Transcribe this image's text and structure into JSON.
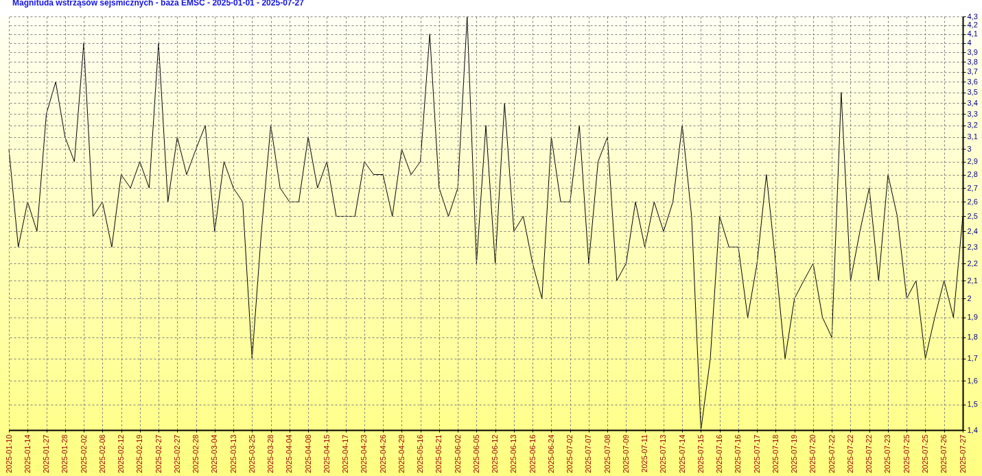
{
  "chart_data": {
    "type": "line",
    "title": "Magnituda wstrząsów sejsmicznych - baza EMSC - 2025-01-01 - 2025-07-27",
    "categories": [
      "2025-01-10",
      null,
      "2025-01-14",
      null,
      "2025-01-27",
      null,
      "2025-01-28",
      null,
      "2025-02-02",
      null,
      "2025-02-08",
      null,
      "2025-02-12",
      null,
      "2025-02-19",
      null,
      "2025-02-27",
      null,
      "2025-02-27",
      null,
      "2025-02-28",
      null,
      "2025-03-04",
      null,
      "2025-03-13",
      null,
      "2025-03-25",
      null,
      "2025-03-28",
      null,
      "2025-04-04",
      null,
      "2025-04-08",
      null,
      "2025-04-15",
      null,
      "2025-04-17",
      null,
      "2025-04-23",
      null,
      "2025-04-26",
      null,
      "2025-04-29",
      null,
      "2025-05-16",
      null,
      "2025-05-21",
      null,
      "2025-06-02",
      null,
      "2025-06-05",
      null,
      "2025-06-12",
      null,
      "2025-06-13",
      null,
      "2025-06-16",
      null,
      "2025-06-24",
      null,
      "2025-07-02",
      null,
      "2025-07-07",
      null,
      "2025-07-08",
      null,
      "2025-07-09",
      null,
      "2025-07-11",
      null,
      "2025-07-13",
      null,
      "2025-07-14",
      null,
      "2025-07-15",
      null,
      "2025-07-16",
      null,
      "2025-07-16",
      null,
      "2025-07-17",
      null,
      "2025-07-18",
      null,
      "2025-07-19",
      null,
      "2025-07-20",
      null,
      "2025-07-22",
      null,
      "2025-07-22",
      null,
      "2025-07-22",
      null,
      "2025-07-23",
      null,
      "2025-07-25",
      null,
      "2025-07-25",
      null,
      "2025-07-26",
      null,
      "2025-07-27"
    ],
    "series": [
      {
        "color": "#000000",
        "values": [
          3.0,
          2.3,
          2.6,
          2.4,
          3.3,
          3.6,
          3.1,
          2.9,
          4.0,
          2.5,
          2.6,
          2.3,
          2.8,
          2.7,
          2.9,
          2.7,
          4.0,
          2.6,
          3.1,
          2.8,
          3.0,
          3.2,
          2.4,
          2.9,
          2.7,
          2.6,
          1.7,
          2.4,
          3.2,
          2.7,
          2.6,
          2.6,
          3.1,
          2.7,
          2.9,
          2.5,
          2.5,
          2.5,
          2.9,
          2.8,
          2.8,
          2.5,
          3.0,
          2.8,
          2.9,
          4.1,
          2.7,
          2.5,
          2.7,
          4.3,
          2.2,
          3.2,
          2.2,
          3.4,
          2.4,
          2.5,
          2.2,
          2.0,
          3.1,
          2.6,
          2.6,
          3.2,
          2.2,
          2.9,
          3.1,
          2.1,
          2.2,
          2.6,
          2.3,
          2.6,
          2.4,
          2.6,
          3.2,
          2.5,
          1.4,
          1.7,
          2.5,
          2.3,
          2.3,
          1.9,
          2.2,
          2.8,
          2.2,
          1.7,
          2.0,
          2.1,
          2.2,
          1.9,
          1.8,
          3.5,
          2.1,
          2.4,
          2.7,
          2.1,
          2.8,
          2.5,
          2.0,
          2.1,
          1.7,
          1.9,
          2.1,
          1.9,
          2.5
        ]
      }
    ],
    "ylim": [
      1.4,
      4.3
    ],
    "yticks": [
      {
        "value": 1.4,
        "label": "1,4"
      },
      {
        "value": 1.5,
        "label": "1,5"
      },
      {
        "value": 1.6,
        "label": "1,6"
      },
      {
        "value": 1.7,
        "label": "1,7"
      },
      {
        "value": 1.8,
        "label": "1,8"
      },
      {
        "value": 1.9,
        "label": "1,9"
      },
      2,
      {
        "value": 2.1,
        "label": "2,1"
      },
      {
        "value": 2.2,
        "label": "2,2"
      },
      {
        "value": 2.3,
        "label": "2,3"
      },
      {
        "value": 2.4,
        "label": "2,4"
      },
      {
        "value": 2.5,
        "label": "2,5"
      },
      {
        "value": 2.6,
        "label": "2,6"
      },
      {
        "value": 2.7,
        "label": "2,7"
      },
      {
        "value": 2.8,
        "label": "2,8"
      },
      {
        "value": 2.9,
        "label": "2,9"
      },
      3,
      {
        "value": 3.1,
        "label": "3,1"
      },
      {
        "value": 3.2,
        "label": "3,2"
      },
      {
        "value": 3.3,
        "label": "3,3"
      },
      {
        "value": 3.4,
        "label": "3,4"
      },
      {
        "value": 3.5,
        "label": "3,5"
      },
      {
        "value": 3.6,
        "label": "3,6"
      },
      {
        "value": 3.7,
        "label": "3,7"
      },
      {
        "value": 3.8,
        "label": "3,8"
      },
      {
        "value": 3.9,
        "label": "3,9"
      },
      4,
      {
        "value": 4.1,
        "label": "4,1"
      },
      {
        "value": 4.2,
        "label": "4,2"
      },
      {
        "value": 4.3,
        "label": "4,3"
      }
    ],
    "log": true,
    "grid": true,
    "line_style": "solid"
  }
}
